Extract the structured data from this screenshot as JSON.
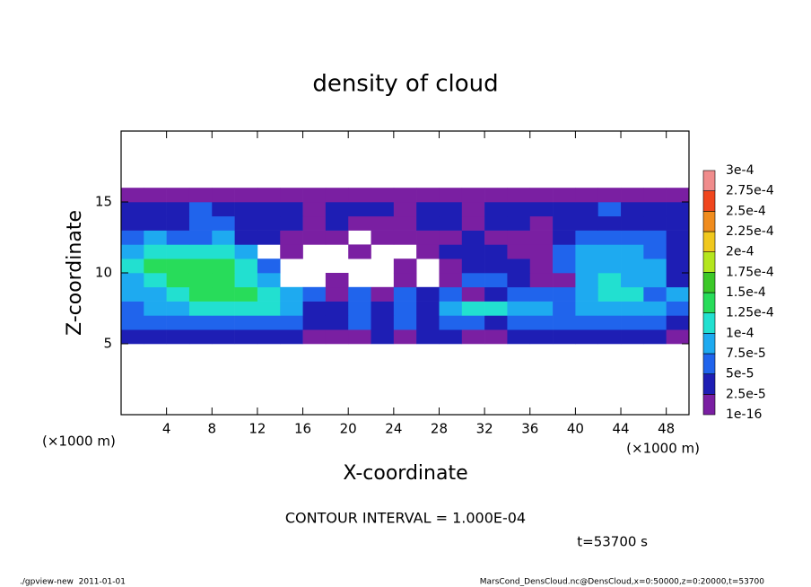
{
  "chart_data": {
    "type": "heatmap",
    "title": "density of cloud",
    "xlabel": "X-coordinate",
    "ylabel": "Z-coordinate",
    "x_unit": "(×1000 m)",
    "xlim": [
      0,
      50
    ],
    "ylim": [
      0,
      20
    ],
    "xticks": [
      4,
      8,
      12,
      16,
      20,
      24,
      28,
      32,
      36,
      40,
      44,
      48
    ],
    "yticks": [
      5,
      10,
      15
    ],
    "x": [
      1,
      3,
      5,
      7,
      9,
      11,
      13,
      15,
      17,
      19,
      21,
      23,
      25,
      27,
      29,
      31,
      33,
      35,
      37,
      39,
      41,
      43,
      45,
      47,
      49
    ],
    "y": [
      5.5,
      6.5,
      7.5,
      8.5,
      9.5,
      10.5,
      11.5,
      12.5,
      13.5,
      14.5,
      15.5
    ],
    "z": [
      [
        3e-05,
        3e-05,
        3e-05,
        3e-05,
        3e-05,
        3e-05,
        3e-05,
        3e-05,
        1e-05,
        1e-05,
        1e-05,
        3e-05,
        1e-05,
        3e-05,
        3e-05,
        1e-05,
        1e-05,
        3e-05,
        3e-05,
        3e-05,
        3e-05,
        3e-05,
        3e-05,
        3e-05,
        1e-05
      ],
      [
        6e-05,
        6e-05,
        6e-05,
        6e-05,
        6e-05,
        6e-05,
        6e-05,
        6e-05,
        3e-05,
        3e-05,
        6e-05,
        3e-05,
        6e-05,
        3e-05,
        6e-05,
        6e-05,
        3e-05,
        6e-05,
        6e-05,
        6e-05,
        6e-05,
        6e-05,
        6e-05,
        6e-05,
        3e-05
      ],
      [
        6e-05,
        9e-05,
        9e-05,
        0.00011,
        0.00011,
        0.00011,
        0.00011,
        9e-05,
        3e-05,
        3e-05,
        6e-05,
        3e-05,
        6e-05,
        3e-05,
        9e-05,
        0.00011,
        0.00011,
        9e-05,
        9e-05,
        6e-05,
        9e-05,
        9e-05,
        9e-05,
        9e-05,
        6e-05
      ],
      [
        9e-05,
        9e-05,
        0.00011,
        0.00013,
        0.00013,
        0.00013,
        0.00011,
        9e-05,
        6e-05,
        1e-05,
        6e-05,
        1e-05,
        6e-05,
        3e-05,
        6e-05,
        1e-05,
        3e-05,
        6e-05,
        6e-05,
        6e-05,
        9e-05,
        0.00011,
        0.00011,
        6e-05,
        9e-05
      ],
      [
        9e-05,
        0.00011,
        0.00013,
        0.00013,
        0.00013,
        0.00011,
        9e-05,
        null,
        null,
        1e-05,
        null,
        null,
        1e-05,
        null,
        1e-05,
        6e-05,
        6e-05,
        3e-05,
        1e-05,
        1e-05,
        9e-05,
        0.00011,
        9e-05,
        9e-05,
        3e-05
      ],
      [
        0.00011,
        0.00013,
        0.00013,
        0.00013,
        0.00013,
        0.00011,
        6e-05,
        null,
        null,
        null,
        null,
        null,
        1e-05,
        null,
        1e-05,
        3e-05,
        3e-05,
        3e-05,
        1e-05,
        6e-05,
        9e-05,
        9e-05,
        9e-05,
        9e-05,
        3e-05
      ],
      [
        9e-05,
        0.00011,
        0.00011,
        0.00011,
        0.00011,
        9e-05,
        null,
        1e-05,
        null,
        null,
        1e-05,
        null,
        null,
        1e-05,
        3e-05,
        3e-05,
        3e-05,
        1e-05,
        1e-05,
        6e-05,
        9e-05,
        9e-05,
        9e-05,
        6e-05,
        3e-05
      ],
      [
        6e-05,
        9e-05,
        6e-05,
        6e-05,
        9e-05,
        3e-05,
        3e-05,
        1e-05,
        1e-05,
        1e-05,
        null,
        1e-05,
        1e-05,
        1e-05,
        1e-05,
        3e-05,
        1e-05,
        1e-05,
        1e-05,
        3e-05,
        6e-05,
        6e-05,
        6e-05,
        6e-05,
        3e-05
      ],
      [
        3e-05,
        3e-05,
        3e-05,
        6e-05,
        6e-05,
        3e-05,
        3e-05,
        3e-05,
        1e-05,
        3e-05,
        1e-05,
        1e-05,
        1e-05,
        3e-05,
        3e-05,
        1e-05,
        3e-05,
        3e-05,
        1e-05,
        3e-05,
        3e-05,
        3e-05,
        3e-05,
        3e-05,
        3e-05
      ],
      [
        3e-05,
        3e-05,
        3e-05,
        6e-05,
        3e-05,
        3e-05,
        3e-05,
        3e-05,
        1e-05,
        3e-05,
        3e-05,
        3e-05,
        1e-05,
        3e-05,
        3e-05,
        1e-05,
        3e-05,
        3e-05,
        3e-05,
        3e-05,
        3e-05,
        6e-05,
        3e-05,
        3e-05,
        3e-05
      ],
      [
        1e-05,
        1e-05,
        1e-05,
        1e-05,
        1e-05,
        1e-05,
        1e-05,
        1e-05,
        1e-05,
        1e-05,
        1e-05,
        1e-05,
        1e-05,
        1e-05,
        1e-05,
        1e-05,
        1e-05,
        1e-05,
        1e-05,
        1e-05,
        1e-05,
        1e-05,
        1e-05,
        1e-05,
        1e-05
      ]
    ],
    "levels": [
      {
        "value": 1e-16,
        "label": "1e-16"
      },
      {
        "value": 2.5e-05,
        "label": "2.5e-5"
      },
      {
        "value": 5e-05,
        "label": "5e-5"
      },
      {
        "value": 7.5e-05,
        "label": "7.5e-5"
      },
      {
        "value": 0.0001,
        "label": "1e-4"
      },
      {
        "value": 0.000125,
        "label": "1.25e-4"
      },
      {
        "value": 0.00015,
        "label": "1.5e-4"
      },
      {
        "value": 0.000175,
        "label": "1.75e-4"
      },
      {
        "value": 0.0002,
        "label": "2e-4"
      },
      {
        "value": 0.000225,
        "label": "2.25e-4"
      },
      {
        "value": 0.00025,
        "label": "2.5e-4"
      },
      {
        "value": 0.000275,
        "label": "2.75e-4"
      },
      {
        "value": 0.0003,
        "label": "3e-4"
      }
    ],
    "colors": [
      "#7a1fa2",
      "#1e1eb4",
      "#2064ec",
      "#1eaaf0",
      "#22e0d0",
      "#28dc5a",
      "#3cc828",
      "#b4e61e",
      "#f0c81e",
      "#f08c1e",
      "#f0461e",
      "#f08c8c"
    ],
    "contour_note": "CONTOUR INTERVAL = 1.000E-04",
    "time_note": "t=53700 s",
    "footer_left": "./gpview-new  2011-01-01",
    "footer_right": "MarsCond_DensCloud.nc@DensCloud,x=0:50000,z=0:20000,t=53700"
  }
}
